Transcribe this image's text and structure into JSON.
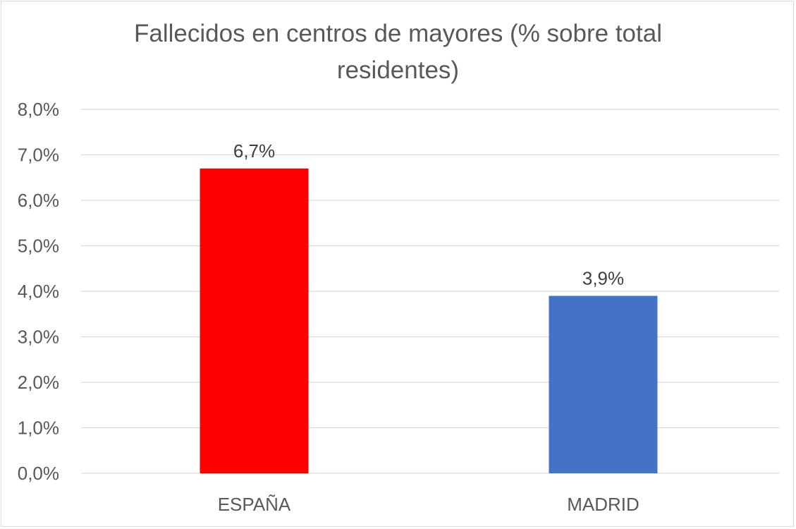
{
  "chart_data": {
    "type": "bar",
    "title_lines": [
      "Fallecidos en centros de mayores (% sobre total",
      "residentes)"
    ],
    "categories": [
      "ESPAÑA",
      "MADRID"
    ],
    "values": [
      6.7,
      3.9
    ],
    "data_labels": [
      "6,7%",
      "3,9%"
    ],
    "colors": [
      "#ff0000",
      "#4472c4"
    ],
    "ylim": [
      0,
      8
    ],
    "yticks": [
      0,
      1,
      2,
      3,
      4,
      5,
      6,
      7,
      8
    ],
    "ytick_labels": [
      "0,0%",
      "1,0%",
      "2,0%",
      "3,0%",
      "4,0%",
      "5,0%",
      "6,0%",
      "7,0%",
      "8,0%"
    ],
    "grid": true,
    "gridline_color": "#d9d9d9",
    "xlabel": "",
    "ylabel": ""
  }
}
